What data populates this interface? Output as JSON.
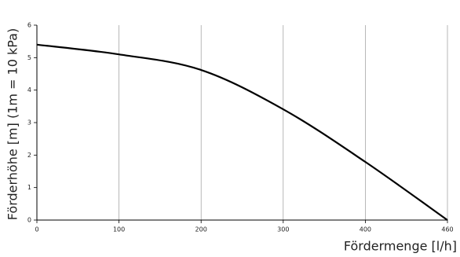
{
  "chart_data": {
    "type": "line",
    "xlabel": "Fördermenge [l/h]",
    "ylabel": "Förderhöhe [m] (1m = 10 kPa)",
    "categories": [
      "0",
      "100",
      "200",
      "300",
      "400",
      "460"
    ],
    "series": [
      {
        "color": "#000000",
        "values": [
          5.4,
          5.1,
          4.62,
          3.41,
          1.79,
          0
        ]
      }
    ],
    "smooth": true,
    "ylim": [
      0,
      6
    ],
    "yticks": [
      0,
      1,
      2,
      3,
      4,
      5,
      6
    ],
    "grid": "x"
  }
}
